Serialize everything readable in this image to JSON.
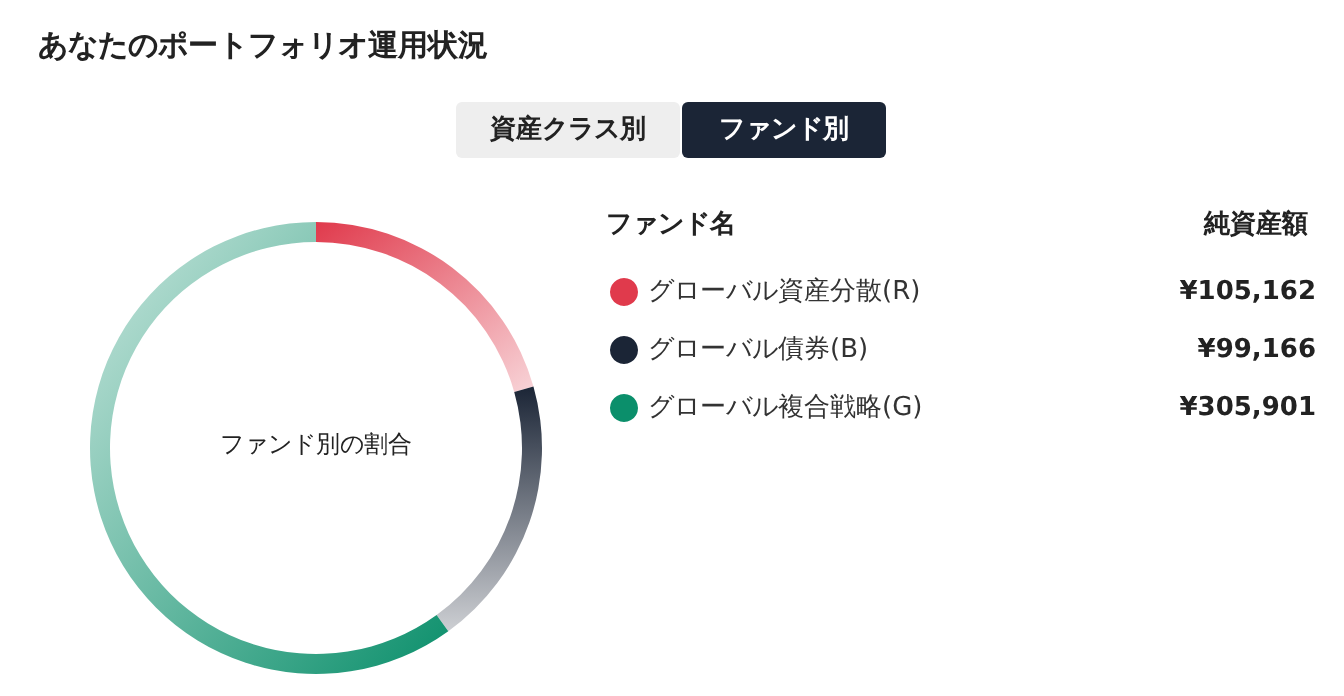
{
  "chart_data": {
    "type": "donut",
    "title": "あなたのポートフォリオ運用状況",
    "categories": [
      "グローバル資産分散(R)",
      "グローバル債券(B)",
      "グローバル複合戦略(G)"
    ],
    "values": [
      105162,
      99166,
      305901
    ],
    "value_labels": [
      "¥105,162",
      "¥99,166",
      "¥305,901"
    ],
    "colors": [
      "#e03a4c",
      "#1b2536",
      "#0b8f6b"
    ],
    "legend": "right",
    "legend_title": "ファンド名",
    "annotations": [
      "ファンド別の割合",
      "資産クラス別",
      "ファンド別",
      "純資産額"
    ]
  }
}
